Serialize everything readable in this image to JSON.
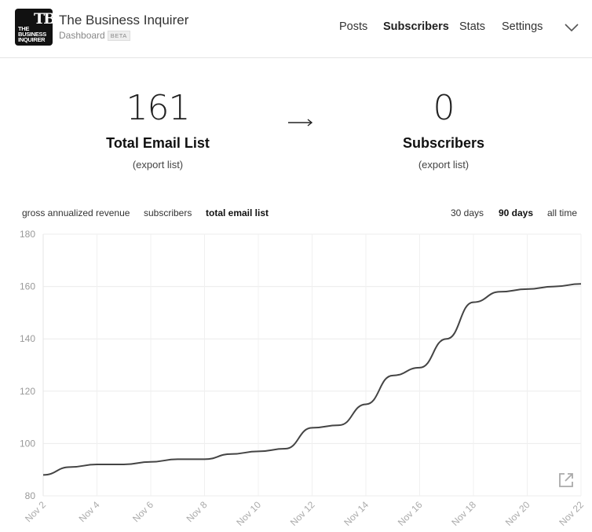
{
  "header": {
    "logo_monogram": "TB",
    "logo_text": [
      "THE",
      "BUSINESS",
      "INQUIRER"
    ],
    "publication_name": "The Business Inquirer",
    "dashboard_label": "Dashboard",
    "beta_badge": "BETA",
    "nav": [
      {
        "label": "Posts",
        "active": false
      },
      {
        "label": "Subscribers",
        "active": true
      },
      {
        "label": "Stats",
        "active": false
      },
      {
        "label": "Settings",
        "active": false
      }
    ],
    "menu_icon": "chevron-down-icon"
  },
  "stats": {
    "email_list": {
      "value": "161",
      "label": "Total Email List",
      "link": "(export list)"
    },
    "arrow_icon": "arrow-right-icon",
    "subscribers": {
      "value": "0",
      "label": "Subscribers",
      "link": "(export list)"
    }
  },
  "metric_tabs": [
    {
      "label": "gross annualized revenue",
      "active": false
    },
    {
      "label": "subscribers",
      "active": false
    },
    {
      "label": "total email list",
      "active": true
    }
  ],
  "range_tabs": [
    {
      "label": "30 days",
      "active": false
    },
    {
      "label": "90 days",
      "active": true
    },
    {
      "label": "all time",
      "active": false
    }
  ],
  "chart_data": {
    "type": "line",
    "title": "",
    "xlabel": "",
    "ylabel": "",
    "ylim": [
      80,
      180
    ],
    "yticks": [
      80,
      100,
      120,
      140,
      160,
      180
    ],
    "xtick_labels": [
      "Nov 2",
      "Nov 4",
      "Nov 6",
      "Nov 8",
      "Nov 10",
      "Nov 12",
      "Nov 14",
      "Nov 16",
      "Nov 18",
      "Nov 20",
      "Nov 22"
    ],
    "grid": true,
    "line_color": "#444444",
    "series": [
      {
        "x": [
          "Nov 2",
          "Nov 3",
          "Nov 4",
          "Nov 5",
          "Nov 6",
          "Nov 7",
          "Nov 8",
          "Nov 9",
          "Nov 10",
          "Nov 11",
          "Nov 12",
          "Nov 13",
          "Nov 14",
          "Nov 15",
          "Nov 16",
          "Nov 17",
          "Nov 18",
          "Nov 19",
          "Nov 20",
          "Nov 21",
          "Nov 22"
        ],
        "values": [
          88,
          91,
          92,
          92,
          93,
          94,
          94,
          96,
          97,
          98,
          106,
          107,
          115,
          126,
          129,
          140,
          154,
          158,
          159,
          160,
          161
        ]
      }
    ]
  },
  "chart_footer_icon": "external-link-icon"
}
